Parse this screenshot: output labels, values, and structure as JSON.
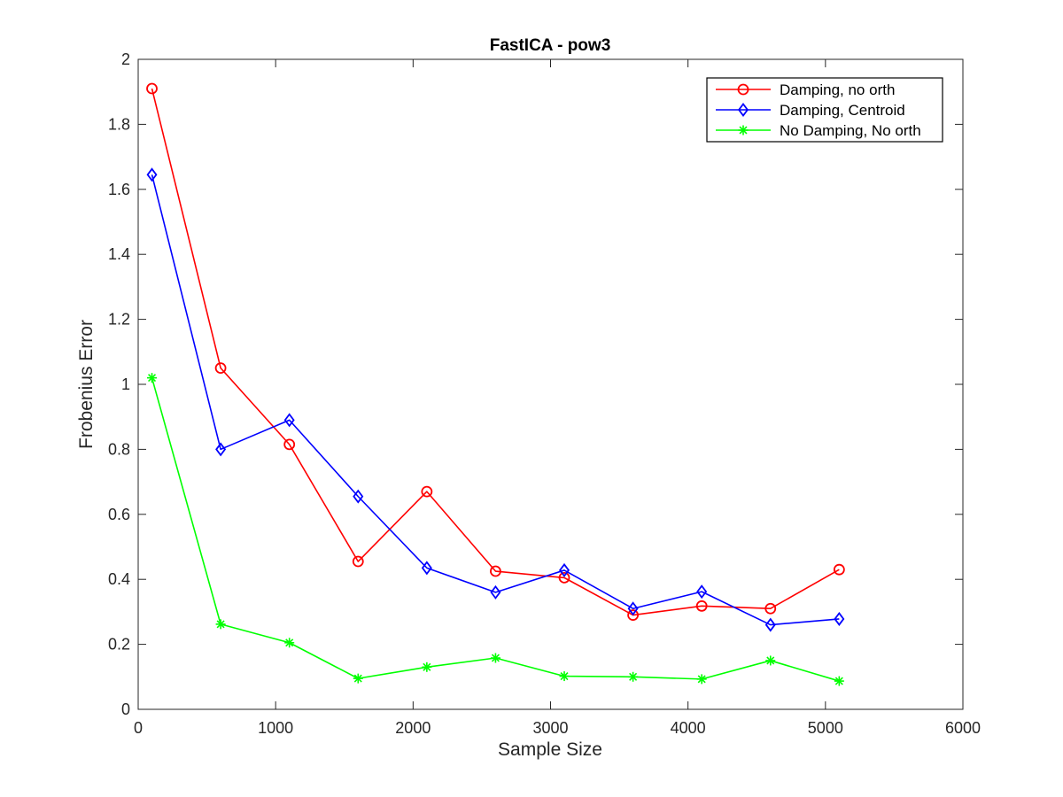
{
  "chart_data": {
    "type": "line",
    "title": "FastICA - pow3",
    "xlabel": "Sample Size",
    "ylabel": "Frobenius Error",
    "xlim": [
      0,
      6000
    ],
    "ylim": [
      0,
      2
    ],
    "x_ticks": [
      0,
      1000,
      2000,
      3000,
      4000,
      5000,
      6000
    ],
    "y_ticks": [
      0,
      0.2,
      0.4,
      0.6,
      0.8,
      1,
      1.2,
      1.4,
      1.6,
      1.8,
      2
    ],
    "x_tick_labels": [
      "0",
      "1000",
      "2000",
      "3000",
      "4000",
      "5000",
      "6000"
    ],
    "y_tick_labels": [
      "0",
      "0.2",
      "0.4",
      "0.6",
      "0.8",
      "1",
      "1.2",
      "1.4",
      "1.6",
      "1.8",
      "2"
    ],
    "grid": false,
    "legend_position": "top-right",
    "x": [
      100,
      600,
      1100,
      1600,
      2100,
      2600,
      3100,
      3600,
      4100,
      4600,
      5100
    ],
    "series": [
      {
        "name": "Damping, no orth",
        "color": "#ff0000",
        "marker": "circle",
        "values": [
          1.91,
          1.05,
          0.815,
          0.455,
          0.67,
          0.425,
          0.405,
          0.29,
          0.318,
          0.31,
          0.43
        ]
      },
      {
        "name": "Damping, Centroid",
        "color": "#0000ff",
        "marker": "diamond",
        "values": [
          1.645,
          0.8,
          0.89,
          0.655,
          0.435,
          0.36,
          0.428,
          0.31,
          0.362,
          0.26,
          0.278
        ]
      },
      {
        "name": "No Damping, No orth",
        "color": "#00ff00",
        "marker": "asterisk",
        "values": [
          1.02,
          0.262,
          0.205,
          0.095,
          0.13,
          0.158,
          0.102,
          0.1,
          0.093,
          0.15,
          0.087
        ]
      }
    ]
  }
}
